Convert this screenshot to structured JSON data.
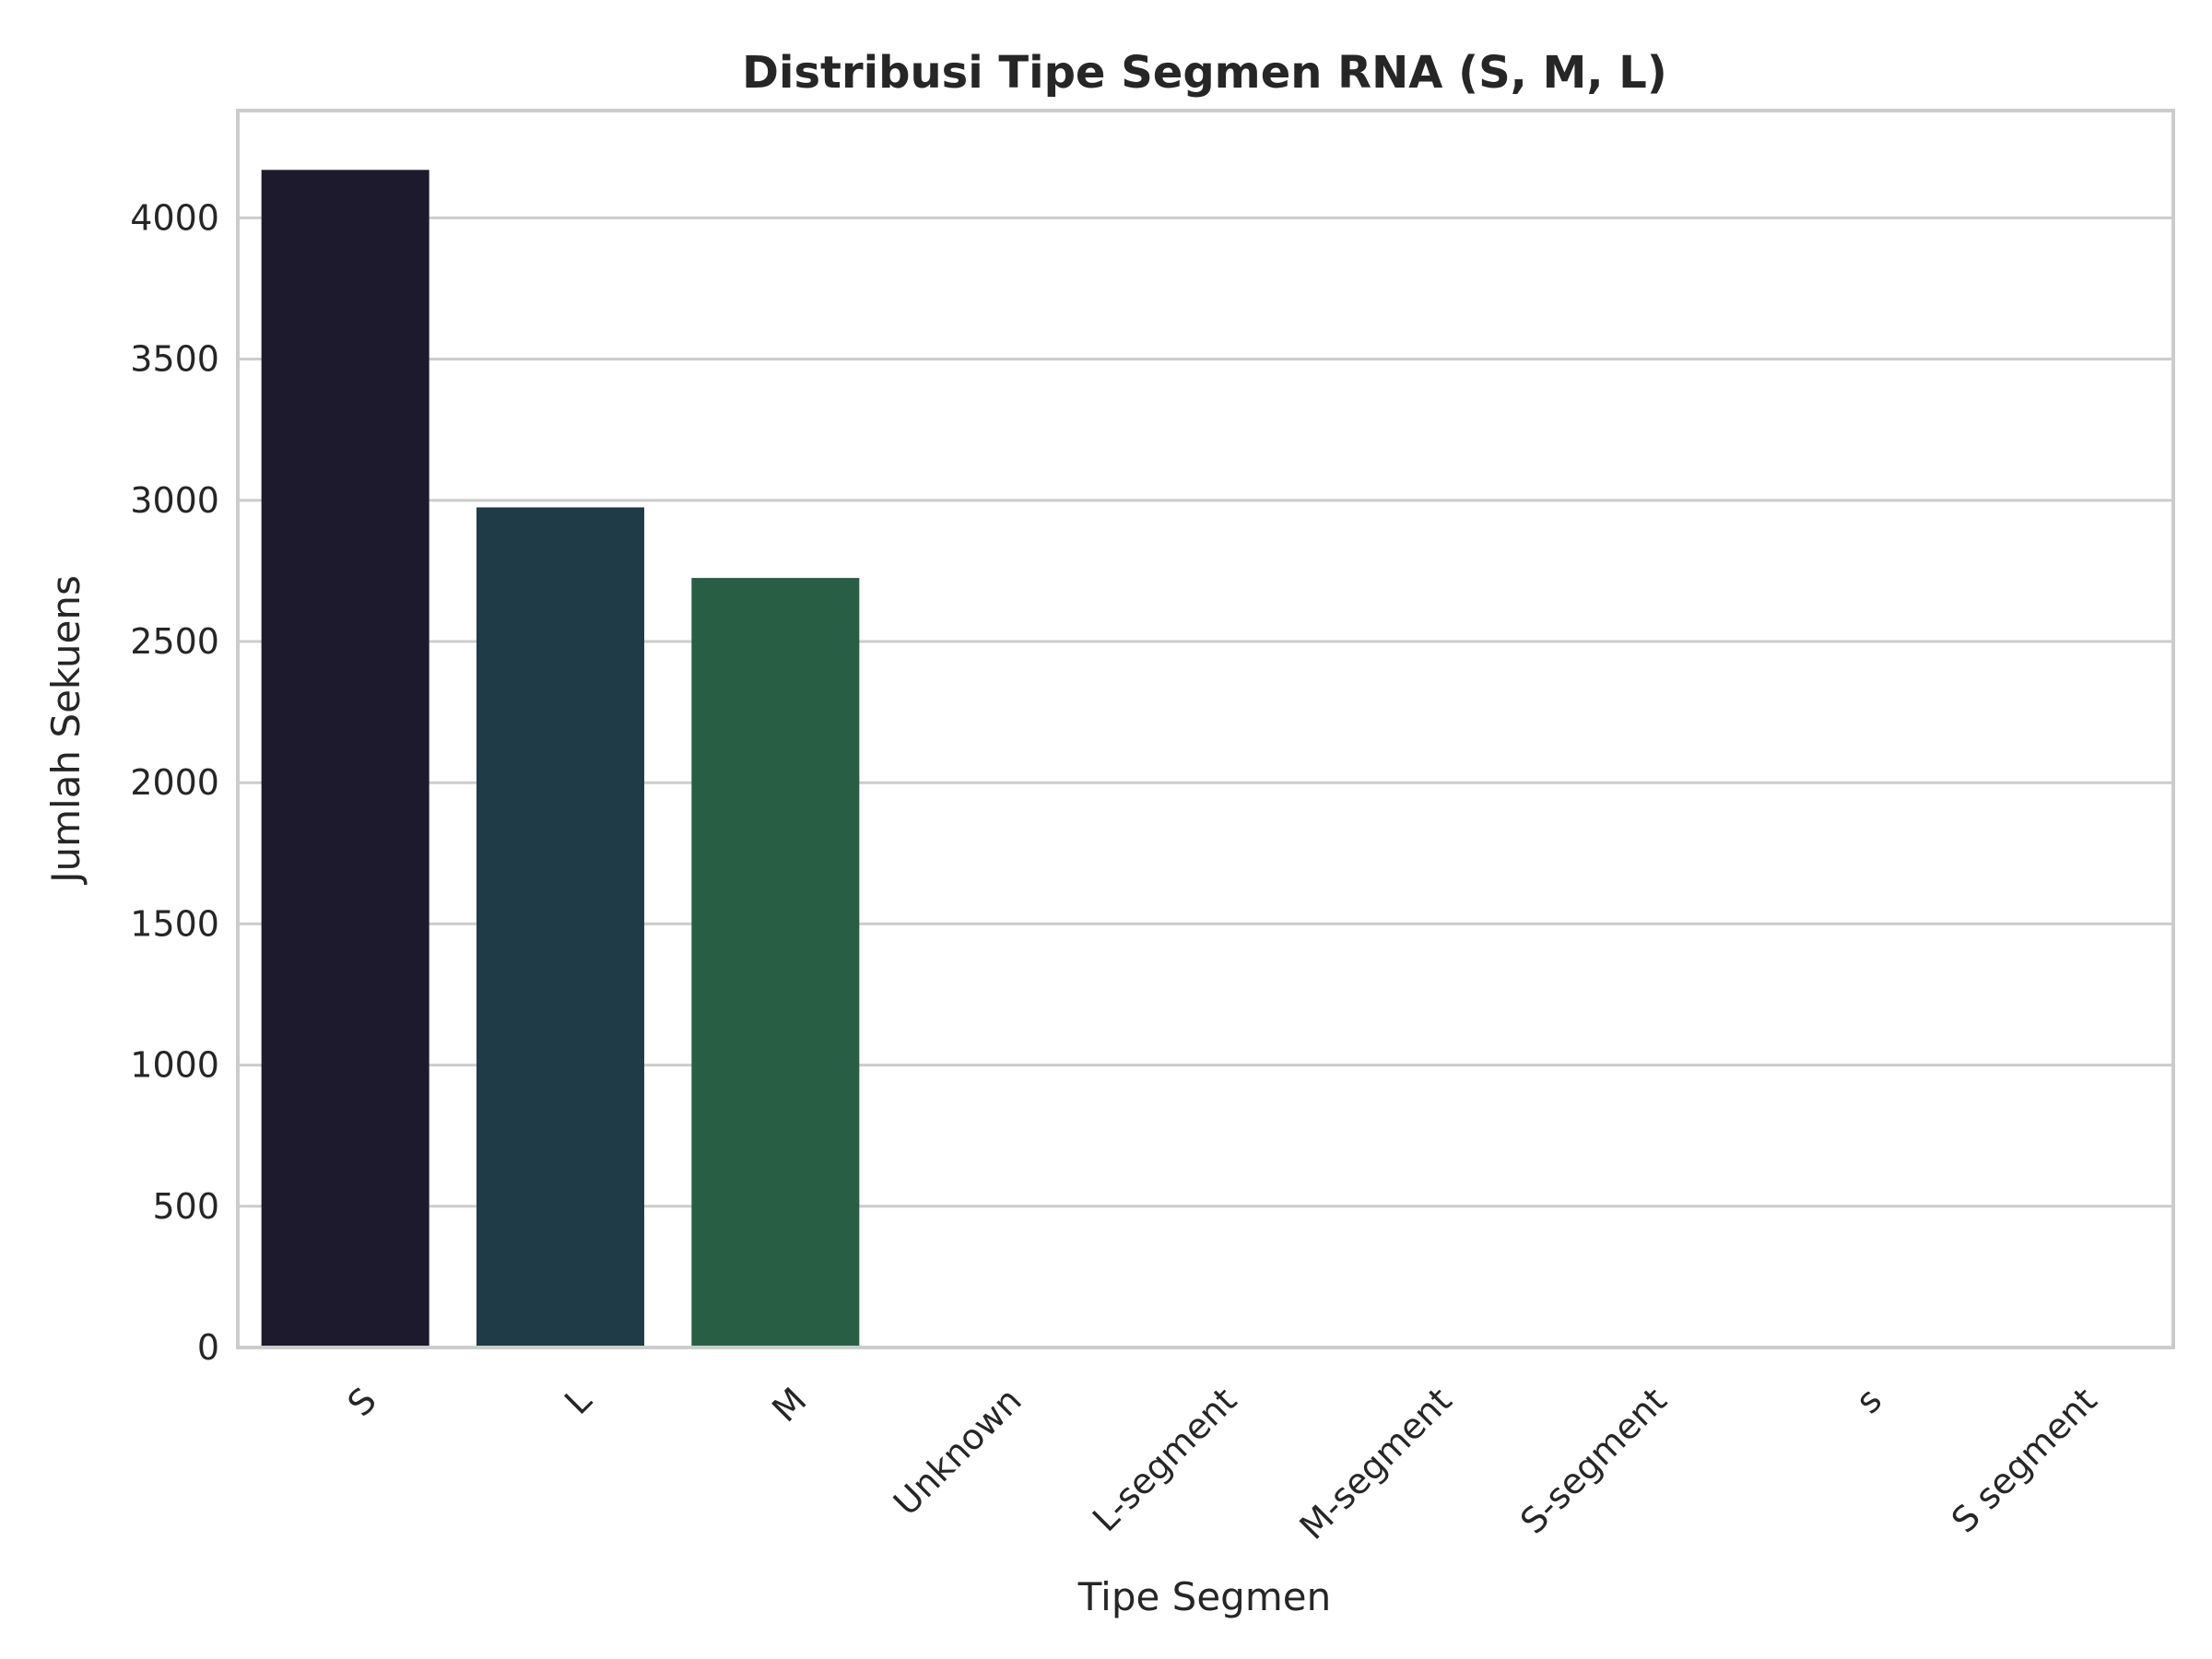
{
  "chart_data": {
    "type": "bar",
    "title": "Distribusi Tipe Segmen RNA (S, M, L)",
    "xlabel": "Tipe Segmen",
    "ylabel": "Jumlah Sekuens",
    "categories": [
      "S",
      "L",
      "M",
      "Unknown",
      "L-segment",
      "M-segment",
      "S-segment",
      "s",
      "S segment"
    ],
    "values": [
      4170,
      2975,
      2725,
      1,
      1,
      1,
      1,
      1,
      1
    ],
    "colors": [
      "#1d1a2e",
      "#1f3b47",
      "#275e44",
      "#2f8a46",
      "#4caf50",
      "#7cc56e",
      "#a8d890",
      "#cde9b3",
      "#e8f5d8"
    ],
    "ylim": [
      0,
      4380
    ],
    "yticks": [
      0,
      500,
      1000,
      1500,
      2000,
      2500,
      3000,
      3500,
      4000
    ],
    "grid": true,
    "grid_axis": "y"
  }
}
